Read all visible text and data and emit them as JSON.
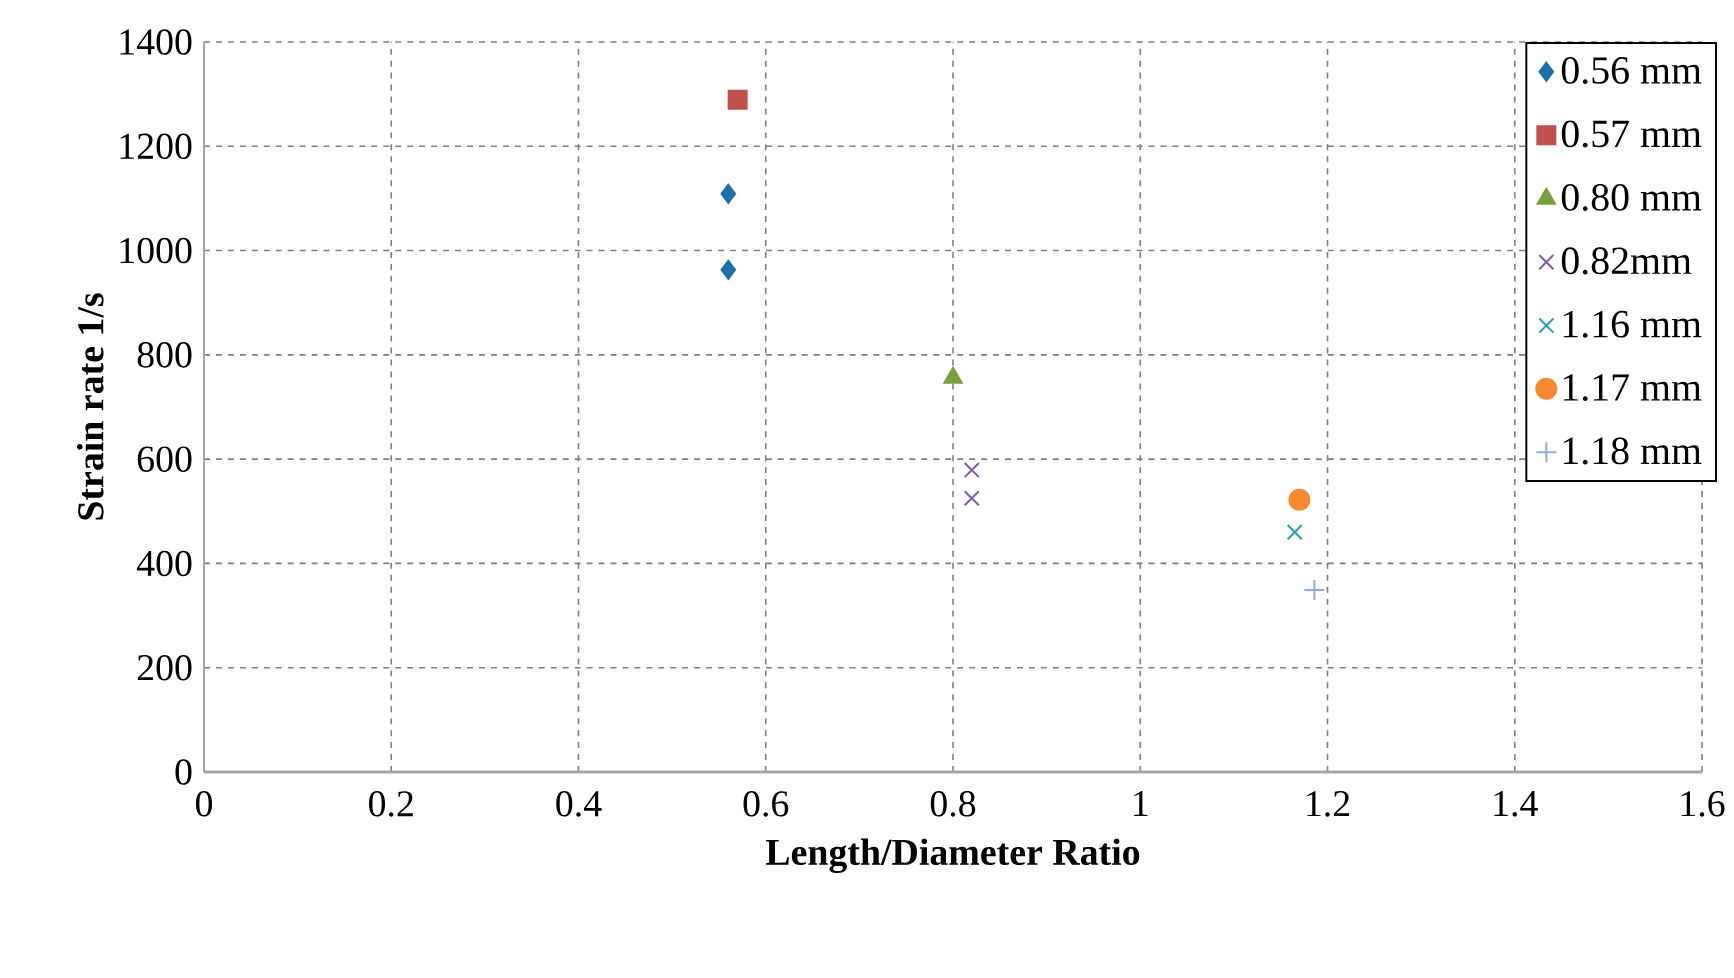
{
  "chart_data": {
    "type": "scatter",
    "xlabel": "Length/Diameter Ratio",
    "ylabel": "Strain rate 1/s",
    "xlim": [
      0,
      1.6
    ],
    "xticks": [
      0,
      0.2,
      0.4,
      0.6,
      0.8,
      1,
      1.2,
      1.4,
      1.6
    ],
    "ylim": [
      0,
      1400
    ],
    "yticks": [
      0,
      200,
      400,
      600,
      800,
      1000,
      1200,
      1400
    ],
    "grid": true,
    "legend": "top right",
    "series": [
      {
        "name": "0.56 mm",
        "color": "#1f6ea8",
        "marker": "diamond",
        "x": [
          0.56,
          0.56
        ],
        "values": [
          1109,
          963
        ]
      },
      {
        "name": "0.57 mm",
        "color": "#c0504d",
        "marker": "square",
        "x": [
          0.57
        ],
        "values": [
          1289
        ]
      },
      {
        "name": "0.80 mm",
        "color": "#77a040",
        "marker": "triangle",
        "x": [
          0.8
        ],
        "values": [
          756
        ]
      },
      {
        "name": "0.82mm",
        "color": "#7f5f9f",
        "marker": "cross",
        "x": [
          0.82,
          0.82
        ],
        "values": [
          579,
          525
        ]
      },
      {
        "name": "1.16 mm",
        "color": "#2a9fb0",
        "marker": "cross",
        "x": [
          1.165
        ],
        "values": [
          460
        ]
      },
      {
        "name": "1.17 mm",
        "color": "#f58a32",
        "marker": "circle",
        "x": [
          1.17
        ],
        "values": [
          522
        ]
      },
      {
        "name": "1.18 mm",
        "color": "#8eaedb",
        "marker": "plus",
        "x": [
          1.186
        ],
        "values": [
          349
        ]
      }
    ]
  }
}
